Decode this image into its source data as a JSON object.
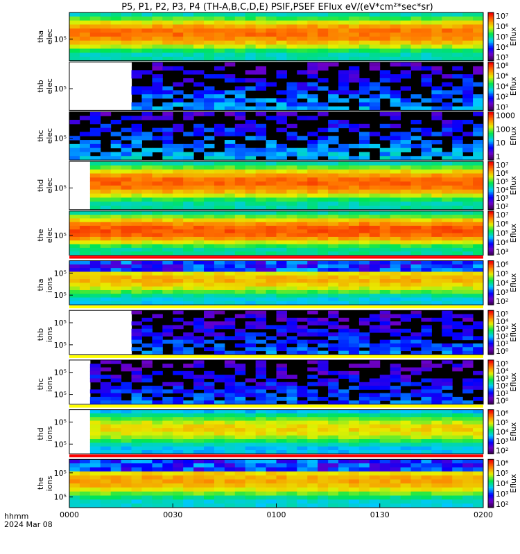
{
  "chart_data": {
    "type": "heatmap",
    "title": "P5, P1, P2, P3, P4 (TH-A,B,C,D,E) PSIF,PSEF EFlux eV/(eV*cm²*sec*sr)",
    "x_ticks": [
      "0000",
      "0030",
      "0100",
      "0130",
      "0200"
    ],
    "x_label_line1": "hhmm",
    "x_label_line2": "2024 Mar 08",
    "panels": [
      {
        "ylabel1": "tha",
        "ylabel2": "elec",
        "y_ticks": [
          "10⁵"
        ],
        "colorbar_label": "Eflux",
        "colorbar_ticks": [
          "10⁷",
          "10⁶",
          "10⁵",
          "10⁴",
          "10³"
        ],
        "log_max": 7,
        "log_min": 2.5,
        "data_gap_until": 0.0,
        "level": 0.78,
        "upper_sparse": false,
        "noisy_top": false,
        "bottom_bar": "none"
      },
      {
        "ylabel1": "thb",
        "ylabel2": "elec",
        "y_ticks": [
          "10⁵"
        ],
        "colorbar_label": "Eflux",
        "colorbar_ticks": [
          "10⁸",
          "10⁶",
          "10⁴",
          "10²",
          "10¹"
        ],
        "log_max": 8,
        "log_min": 0.5,
        "data_gap_until": 0.15,
        "level": 0.22,
        "upper_sparse": true,
        "noisy_top": false,
        "bottom_bar": "none"
      },
      {
        "ylabel1": "thc",
        "ylabel2": "elec",
        "y_ticks": [
          "10⁵"
        ],
        "colorbar_label": "Eflux",
        "colorbar_ticks": [
          "1000",
          "100",
          "10",
          "1"
        ],
        "log_max": 4,
        "log_min": 0,
        "data_gap_until": 0.0,
        "level": 0.25,
        "upper_sparse": true,
        "noisy_top": false,
        "bottom_bar": "none"
      },
      {
        "ylabel1": "thd",
        "ylabel2": "elec",
        "y_ticks": [
          "10⁵"
        ],
        "colorbar_label": "Eflux",
        "colorbar_ticks": [
          "10⁷",
          "10⁶",
          "10⁵",
          "10⁴",
          "10³",
          "10²"
        ],
        "log_max": 7,
        "log_min": 1.5,
        "data_gap_until": 0.04,
        "level": 0.8,
        "upper_sparse": false,
        "noisy_top": false,
        "bottom_bar": "none"
      },
      {
        "ylabel1": "the",
        "ylabel2": "elec",
        "y_ticks": [
          "10⁵"
        ],
        "colorbar_label": "Eflux",
        "colorbar_ticks": [
          "10⁷",
          "10⁶",
          "10⁵",
          "10⁴",
          "10³"
        ],
        "log_max": 7,
        "log_min": 2.5,
        "data_gap_until": 0.0,
        "level": 0.82,
        "upper_sparse": false,
        "noisy_top": false,
        "bottom_bar": "red"
      },
      {
        "ylabel1": "tha",
        "ylabel2": "ions",
        "y_ticks": [
          "10⁵",
          "10⁵"
        ],
        "colorbar_label": "Eflux",
        "colorbar_ticks": [
          "10⁶",
          "10⁵",
          "10⁴",
          "10³",
          "10²"
        ],
        "log_max": 6,
        "log_min": 1.5,
        "data_gap_until": 0.0,
        "level": 0.7,
        "upper_sparse": false,
        "noisy_top": true,
        "bottom_bar": "yellow"
      },
      {
        "ylabel1": "thb",
        "ylabel2": "ions",
        "y_ticks": [
          "10⁵",
          "10⁵"
        ],
        "colorbar_label": "Eflux",
        "colorbar_ticks": [
          "10⁵",
          "10⁴",
          "10³",
          "10²",
          "10¹",
          "10⁰"
        ],
        "log_max": 5.5,
        "log_min": -0.5,
        "data_gap_until": 0.15,
        "level": 0.18,
        "upper_sparse": true,
        "noisy_top": false,
        "bottom_bar": "yellow"
      },
      {
        "ylabel1": "thc",
        "ylabel2": "ions",
        "y_ticks": [
          "10⁵",
          "10⁵"
        ],
        "colorbar_label": "Eflux",
        "colorbar_ticks": [
          "10⁵",
          "10⁴",
          "10³",
          "10²",
          "10¹",
          "10⁰"
        ],
        "log_max": 5,
        "log_min": -0.5,
        "data_gap_until": 0.05,
        "level": 0.18,
        "upper_sparse": true,
        "noisy_top": false,
        "bottom_bar": "yellow"
      },
      {
        "ylabel1": "thd",
        "ylabel2": "ions",
        "y_ticks": [
          "10⁵",
          "10⁵"
        ],
        "colorbar_label": "Eflux",
        "colorbar_ticks": [
          "10⁶",
          "10⁵",
          "10⁴",
          "10³",
          "10²"
        ],
        "log_max": 6,
        "log_min": 1.5,
        "data_gap_until": 0.04,
        "level": 0.66,
        "upper_sparse": false,
        "noisy_top": false,
        "bottom_bar": "red"
      },
      {
        "ylabel1": "the",
        "ylabel2": "ions",
        "y_ticks": [
          "10⁵",
          "10⁵"
        ],
        "colorbar_label": "Eflux",
        "colorbar_ticks": [
          "10⁶",
          "10⁵",
          "10⁴",
          "10³",
          "10²"
        ],
        "log_max": 6,
        "log_min": 1.5,
        "data_gap_until": 0.0,
        "level": 0.72,
        "upper_sparse": false,
        "noisy_top": true,
        "bottom_bar": "none"
      }
    ]
  }
}
